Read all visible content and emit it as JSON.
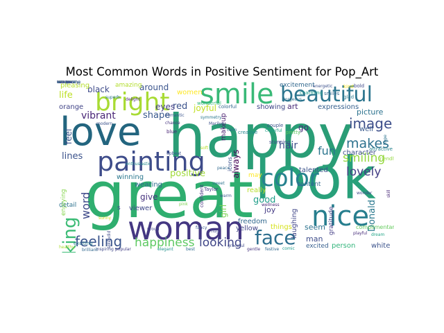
{
  "chart_data": {
    "type": "wordcloud",
    "title": "Most Common Words in Positive Sentiment for Pop_Art",
    "words": [
      {
        "text": "happy",
        "rank": 1,
        "color": "#2a9d76"
      },
      {
        "text": "great",
        "rank": 2,
        "color": "#2fae6f"
      },
      {
        "text": "look",
        "rank": 3,
        "color": "#28a07a"
      },
      {
        "text": "love",
        "rank": 4,
        "color": "#23657f"
      },
      {
        "text": "woman",
        "rank": 5,
        "color": "#443782"
      },
      {
        "text": "painting",
        "rank": 6,
        "color": "#3e4c8a"
      },
      {
        "text": "smile",
        "rank": 7,
        "color": "#39b977"
      },
      {
        "text": "beautiful",
        "rank": 8,
        "color": "#2c758e"
      },
      {
        "text": "bright",
        "rank": 9,
        "color": "#a8db34"
      },
      {
        "text": "color",
        "rank": 10,
        "color": "#26818e"
      },
      {
        "text": "nice",
        "rank": 11,
        "color": "#277e8e"
      },
      {
        "text": "face",
        "rank": 12,
        "color": "#2e6f8e"
      },
      {
        "text": "making",
        "rank": 13,
        "color": "#3bbb75"
      },
      {
        "text": "feeling",
        "rank": 14,
        "color": "#3a548c"
      },
      {
        "text": "happiness",
        "rank": 15,
        "color": "#5ec962"
      },
      {
        "text": "looking",
        "rank": 16,
        "color": "#404688"
      },
      {
        "text": "smiling",
        "rank": 17,
        "color": "#95d840"
      },
      {
        "text": "image",
        "rank": 18,
        "color": "#3d4e8a"
      },
      {
        "text": "makes",
        "rank": 19,
        "color": "#2d718e"
      },
      {
        "text": "lovely",
        "rank": 20,
        "color": "#433e85"
      },
      {
        "text": "vibrant",
        "rank": 21,
        "color": "#482475"
      },
      {
        "text": "hair",
        "rank": 22,
        "color": "#3c4f8a"
      },
      {
        "text": "fun",
        "rank": 23,
        "color": "#2b758e"
      },
      {
        "text": "word",
        "rank": 24,
        "color": "#3e4989"
      },
      {
        "text": "Donald",
        "rank": 25,
        "color": "#2a788e"
      },
      {
        "text": "always",
        "rank": 26,
        "color": "#440154"
      },
      {
        "text": "positive",
        "rank": 27,
        "color": "#a0da39"
      },
      {
        "text": "red",
        "rank": 28,
        "color": "#3b528b"
      },
      {
        "text": "women",
        "rank": 29,
        "color": "#fde725"
      },
      {
        "text": "shape",
        "rank": 30,
        "color": "#38588c"
      },
      {
        "text": "joyful",
        "rank": 31,
        "color": "#c2df23"
      },
      {
        "text": "art",
        "rank": 32,
        "color": "#482878"
      },
      {
        "text": "eyes",
        "rank": 33,
        "color": "#433e85"
      },
      {
        "text": "go",
        "rank": 34,
        "color": "#472d7b"
      },
      {
        "text": "lines",
        "rank": 35,
        "color": "#3b528b"
      },
      {
        "text": "life",
        "rank": 36,
        "color": "#bddf26"
      },
      {
        "text": "black",
        "rank": 37,
        "color": "#3e4a89"
      },
      {
        "text": "around",
        "rank": 38,
        "color": "#3a548c"
      },
      {
        "text": "showing",
        "rank": 39,
        "color": "#404688"
      },
      {
        "text": "expressions",
        "rank": 40,
        "color": "#355f8d"
      },
      {
        "text": "picture",
        "rank": 41,
        "color": "#2c728e"
      },
      {
        "text": "excitement",
        "rank": 42,
        "color": "#31688e"
      },
      {
        "text": "pleasing",
        "rank": 43,
        "color": "#b5de2b"
      },
      {
        "text": "amazing",
        "rank": 44,
        "color": "#b2dd2d"
      },
      {
        "text": "orange",
        "rank": 45,
        "color": "#414487"
      },
      {
        "text": "feel",
        "rank": 46,
        "color": "#3a548c"
      },
      {
        "text": "give",
        "rank": 47,
        "color": "#46327e"
      },
      {
        "text": "wearing",
        "rank": 48,
        "color": "#2e6e8e"
      },
      {
        "text": "winning",
        "rank": 49,
        "color": "#2a788e"
      },
      {
        "text": "viewer",
        "rank": 50,
        "color": "#3f4889"
      },
      {
        "text": "good",
        "rank": 51,
        "color": "#1f9e89"
      },
      {
        "text": "really",
        "rank": 52,
        "color": "#b5de2b"
      },
      {
        "text": "joy",
        "rank": 53,
        "color": "#443a83"
      },
      {
        "text": "girl",
        "rank": 54,
        "color": "#7ad151"
      },
      {
        "text": "freedom",
        "rank": 55,
        "color": "#31688e"
      },
      {
        "text": "yellow",
        "rank": 56,
        "color": "#414487"
      },
      {
        "text": "things",
        "rank": 57,
        "color": "#d5e21a"
      },
      {
        "text": "seem",
        "rank": 58,
        "color": "#2c728e"
      },
      {
        "text": "man",
        "rank": 59,
        "color": "#3e4c8a"
      },
      {
        "text": "excited",
        "rank": 60,
        "color": "#355e8d"
      },
      {
        "text": "person",
        "rank": 61,
        "color": "#30b47a"
      },
      {
        "text": "white",
        "rank": 62,
        "color": "#3b528b"
      },
      {
        "text": "content",
        "rank": 63,
        "color": "#30688e"
      },
      {
        "text": "talented",
        "rank": 64,
        "color": "#3b528b"
      },
      {
        "text": "laughing",
        "rank": 65,
        "color": "#404688"
      },
      {
        "text": "character",
        "rank": 66,
        "color": "#3c4f8a"
      },
      {
        "text": "well",
        "rank": 67,
        "color": "#38588c"
      },
      {
        "text": "detail",
        "rank": 68,
        "color": "#2c728e"
      },
      {
        "text": "enjoying",
        "rank": 69,
        "color": "#84d44b"
      },
      {
        "text": "makeup",
        "rank": 70,
        "color": "#481c6e"
      },
      {
        "text": "icons",
        "rank": 71,
        "color": "#3b518b"
      },
      {
        "text": "may",
        "rank": 72,
        "color": "#fde725"
      },
      {
        "text": "gratitude",
        "rank": 73,
        "color": "#433e85"
      },
      {
        "text": "complimentary",
        "rank": 74,
        "color": "#65cb5e"
      },
      {
        "text": "s",
        "rank": 75,
        "color": "#3e4a89"
      },
      {
        "text": "wonderful",
        "rank": 76,
        "color": "#35b779"
      },
      {
        "text": "colorful",
        "rank": 77,
        "color": "#31688e"
      },
      {
        "text": "confident",
        "rank": 78,
        "color": "#46337f"
      },
      {
        "text": "wellness",
        "rank": 79,
        "color": "#482677"
      },
      {
        "text": "stunning",
        "rank": 80,
        "color": "#3e4989"
      },
      {
        "text": "couple",
        "rank": 81,
        "color": "#3b528b"
      },
      {
        "text": "cheerful",
        "rank": 82,
        "color": "#1fa187"
      },
      {
        "text": "creative",
        "rank": 83,
        "color": "#24868e"
      },
      {
        "text": "pretty",
        "rank": 84,
        "color": "#5ec962"
      },
      {
        "text": "glad",
        "rank": 85,
        "color": "#2a788e"
      },
      {
        "text": "bold",
        "rank": 86,
        "color": "#3e4989"
      },
      {
        "text": "kind",
        "rank": 87,
        "color": "#fde725"
      },
      {
        "text": "smiles",
        "rank": 88,
        "color": "#31688e"
      },
      {
        "text": "energetic",
        "rank": 89,
        "color": "#3b518b"
      },
      {
        "text": "hope",
        "rank": 90,
        "color": "#2c728e"
      },
      {
        "text": "skill",
        "rank": 91,
        "color": "#482878"
      },
      {
        "text": "friendly",
        "rank": 92,
        "color": "#95d840"
      },
      {
        "text": "attractive",
        "rank": 93,
        "color": "#26828e"
      },
      {
        "text": "wonder",
        "rank": 94,
        "color": "#3e4a89"
      },
      {
        "text": "dream",
        "rank": 95,
        "color": "#20a486"
      },
      {
        "text": "playful",
        "rank": 96,
        "color": "#472c7a"
      },
      {
        "text": "peace",
        "rank": 97,
        "color": "#31688e"
      },
      {
        "text": "calm",
        "rank": 98,
        "color": "#2d708e"
      },
      {
        "text": "warm",
        "rank": 99,
        "color": "#38588c"
      },
      {
        "text": "Taylor",
        "rank": 100,
        "color": "#433e85"
      },
      {
        "text": "Marilyn",
        "rank": 101,
        "color": "#3c508b"
      },
      {
        "text": "symmetry",
        "rank": 102,
        "color": "#2a788e"
      },
      {
        "text": "soft",
        "rank": 103,
        "color": "#b8de29"
      },
      {
        "text": "charming",
        "rank": 104,
        "color": "#1f9a8a"
      },
      {
        "text": "gorgeous",
        "rank": 105,
        "color": "#2d718e"
      },
      {
        "text": "romantic",
        "rank": 106,
        "color": "#3a548c"
      },
      {
        "text": "chance",
        "rank": 107,
        "color": "#46327e"
      },
      {
        "text": "blue",
        "rank": 108,
        "color": "#482374"
      },
      {
        "text": "pink",
        "rank": 109,
        "color": "#7ad151"
      },
      {
        "text": "sweet",
        "rank": 110,
        "color": "#2b748e"
      },
      {
        "text": "hug",
        "rank": 111,
        "color": "#404588"
      },
      {
        "text": "fancy",
        "rank": 112,
        "color": "#3b528b"
      },
      {
        "text": "best",
        "rank": 113,
        "color": "#2f6c8e"
      },
      {
        "text": "elegant",
        "rank": 114,
        "color": "#21918c"
      },
      {
        "text": "proud",
        "rank": 115,
        "color": "#414487"
      },
      {
        "text": "sunny",
        "rank": 116,
        "color": "#c8e020"
      },
      {
        "text": "splendid",
        "rank": 117,
        "color": "#3e4c8a"
      },
      {
        "text": "modern",
        "rank": 118,
        "color": "#3b528b"
      },
      {
        "text": "superb",
        "rank": 119,
        "color": "#2c738e"
      },
      {
        "text": "delight",
        "rank": 120,
        "color": "#482979"
      },
      {
        "text": "enthusiastic",
        "rank": 121,
        "color": "#238a8d"
      },
      {
        "text": "inspiring",
        "rank": 122,
        "color": "#3f4889"
      },
      {
        "text": "brilliant",
        "rank": 123,
        "color": "#31688e"
      },
      {
        "text": "healthy",
        "rank": 124,
        "color": "#aadc32"
      },
      {
        "text": "exciting",
        "rank": 125,
        "color": "#2a788e"
      },
      {
        "text": "graceful",
        "rank": 126,
        "color": "#3e4989"
      },
      {
        "text": "gentle",
        "rank": 127,
        "color": "#46337f"
      },
      {
        "text": "festive",
        "rank": 128,
        "color": "#31688e"
      },
      {
        "text": "comic",
        "rank": 129,
        "color": "#1e9b8a"
      },
      {
        "text": "popular",
        "rank": 130,
        "color": "#433e85"
      },
      {
        "text": "upbeat",
        "rank": 131,
        "color": "#3b528b"
      },
      {
        "text": "creation",
        "rank": 132,
        "color": "#48186a"
      },
      {
        "text": "wholesome",
        "rank": 133,
        "color": "#2c728e"
      },
      {
        "text": "delightful",
        "rank": 134,
        "color": "#8fd744"
      },
      {
        "text": "Everybody",
        "rank": 135,
        "color": "#3e4a89"
      },
      {
        "text": "standard",
        "rank": 136,
        "color": "#2a788e"
      },
      {
        "text": "celebrating",
        "rank": 137,
        "color": "#3b528b"
      },
      {
        "text": "fashion",
        "rank": 138,
        "color": "#404688"
      },
      {
        "text": "hilarious",
        "rank": 139,
        "color": "#3b528b"
      }
    ]
  }
}
